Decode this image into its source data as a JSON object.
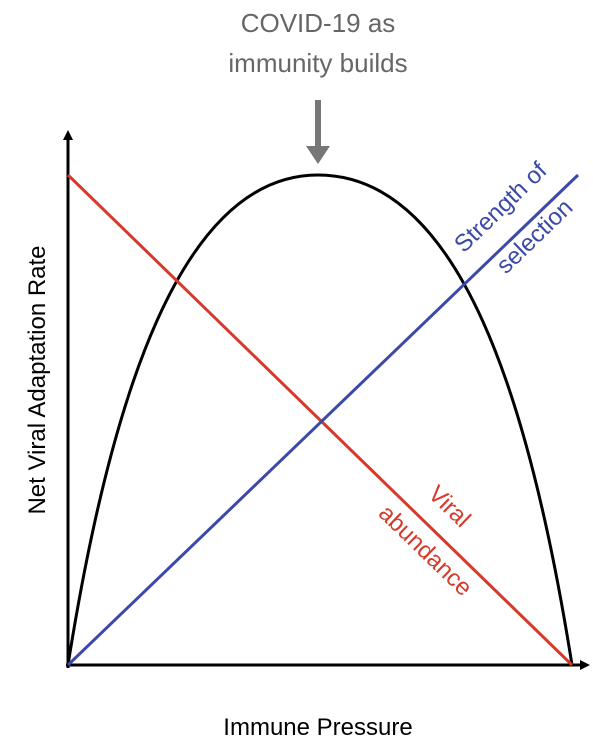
{
  "annotation": {
    "lines": [
      "COVID-19 as",
      "immunity builds"
    ]
  },
  "y_axis_label": "Net Viral Adaptation Rate",
  "x_axis_label": "Immune Pressure",
  "curves": {
    "selection": {
      "lines": [
        "Strength of",
        "selection"
      ]
    },
    "abundance": {
      "lines": [
        "Viral",
        "abundance"
      ]
    }
  }
}
